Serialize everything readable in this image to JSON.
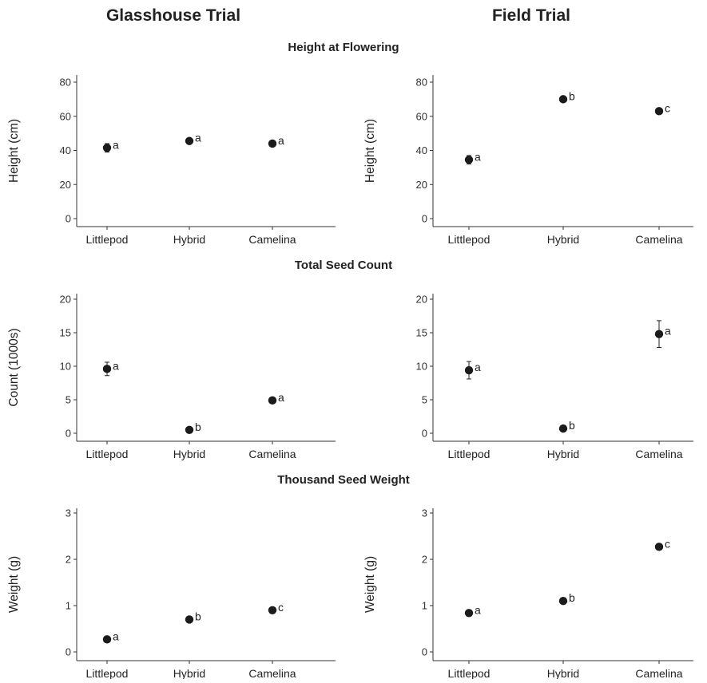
{
  "figure": {
    "col_titles": [
      "Glasshouse Trial",
      "Field Trial"
    ],
    "row_titles": [
      "Height at Flowering",
      "Total Seed Count",
      "Thousand Seed Weight"
    ]
  },
  "chart_data": [
    {
      "type": "scatter",
      "panel": "glasshouse-height",
      "categories": [
        "Littlepod",
        "Hybrid",
        "Camelina"
      ],
      "values": [
        41.5,
        45.5,
        44
      ],
      "errors": [
        2.5,
        0,
        0
      ],
      "letters": [
        "a",
        "a",
        "a"
      ],
      "ylabel": "Height (cm)",
      "ylim": [
        0,
        80
      ],
      "yticks": [
        0,
        20,
        40,
        60,
        80
      ]
    },
    {
      "type": "scatter",
      "panel": "field-height",
      "categories": [
        "Littlepod",
        "Hybrid",
        "Camelina"
      ],
      "values": [
        34.5,
        70,
        63
      ],
      "errors": [
        2.5,
        0,
        0
      ],
      "letters": [
        "a",
        "b",
        "c"
      ],
      "ylabel": "Height (cm)",
      "ylim": [
        0,
        80
      ],
      "yticks": [
        0,
        20,
        40,
        60,
        80
      ]
    },
    {
      "type": "scatter",
      "panel": "glasshouse-seed-count",
      "categories": [
        "Littlepod",
        "Hybrid",
        "Camelina"
      ],
      "values": [
        9.6,
        0.5,
        4.9
      ],
      "errors": [
        1.0,
        0,
        0
      ],
      "letters": [
        "a",
        "b",
        "a"
      ],
      "ylabel": "Count (1000s)",
      "ylim": [
        0,
        20
      ],
      "yticks": [
        0,
        5,
        10,
        15,
        20
      ]
    },
    {
      "type": "scatter",
      "panel": "field-seed-count",
      "categories": [
        "Littlepod",
        "Hybrid",
        "Camelina"
      ],
      "values": [
        9.4,
        0.7,
        14.8
      ],
      "errors": [
        1.3,
        0,
        2.0
      ],
      "letters": [
        "a",
        "b",
        "a"
      ],
      "ylabel": "",
      "ylim": [
        0,
        20
      ],
      "yticks": [
        0,
        5,
        10,
        15,
        20
      ]
    },
    {
      "type": "scatter",
      "panel": "glasshouse-seed-weight",
      "categories": [
        "Littlepod",
        "Hybrid",
        "Camelina"
      ],
      "values": [
        0.27,
        0.7,
        0.9
      ],
      "errors": [
        0,
        0,
        0
      ],
      "letters": [
        "a",
        "b",
        "c"
      ],
      "ylabel": "Weight (g)",
      "ylim": [
        0,
        3
      ],
      "yticks": [
        0,
        1,
        2,
        3
      ]
    },
    {
      "type": "scatter",
      "panel": "field-seed-weight",
      "categories": [
        "Littlepod",
        "Hybrid",
        "Camelina"
      ],
      "values": [
        0.84,
        1.1,
        2.27
      ],
      "errors": [
        0,
        0,
        0
      ],
      "letters": [
        "a",
        "b",
        "c"
      ],
      "ylabel": "Weight (g)",
      "ylim": [
        0,
        3
      ],
      "yticks": [
        0,
        1,
        2,
        3
      ]
    }
  ]
}
